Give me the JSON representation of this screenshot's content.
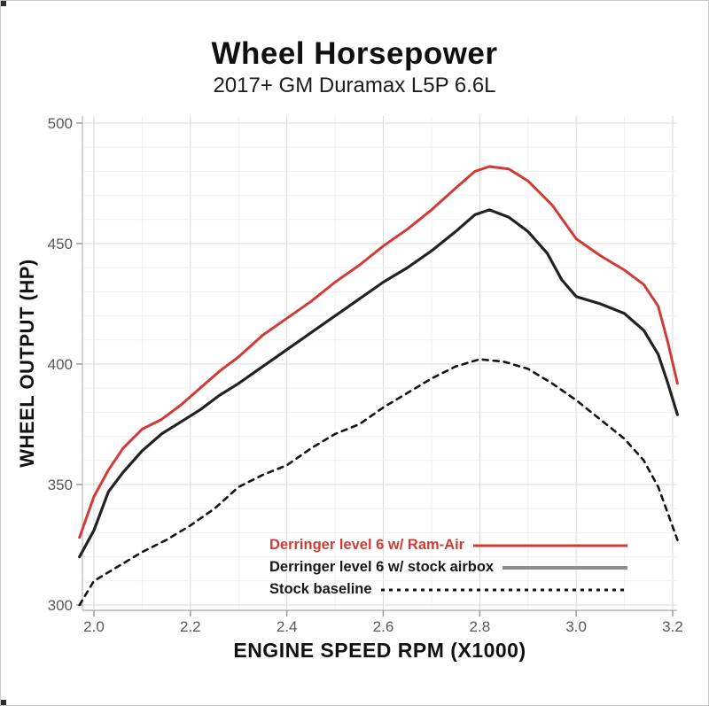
{
  "page": {
    "background": "#ffffff",
    "border_color": "#c9c9c9"
  },
  "chart_data": {
    "type": "line",
    "title": "Wheel Horsepower",
    "subtitle": "2017+ GM Duramax L5P 6.6L",
    "xlabel": "ENGINE SPEED RPM (X1000)",
    "ylabel": "WHEEL OUTPUT (HP)",
    "xlim": [
      1.97,
      3.21
    ],
    "ylim": [
      300,
      500
    ],
    "x_ticks": [
      2.0,
      2.2,
      2.4,
      2.6,
      2.8,
      3.0,
      3.2
    ],
    "x_tick_labels": [
      "2.0",
      "2.2",
      "2.4",
      "2.6",
      "2.8",
      "3.0",
      "3.2"
    ],
    "y_ticks": [
      300,
      350,
      400,
      450,
      500
    ],
    "y_tick_labels": [
      "300",
      "350",
      "400",
      "450",
      "500"
    ],
    "x_minor_step": 0.1,
    "y_minor_step": 10,
    "grid": true,
    "legend_position": "inside-bottom",
    "colors": {
      "grid_minor": "#f1f1f1",
      "grid_major": "#dadada",
      "axis_line": "#c9c9c9",
      "tick_mark": "#9a9a9a",
      "tick_label": "#595959",
      "legend_gray_line": "#8f8f8f"
    },
    "series": [
      {
        "name": "Derringer level 6 w/ Ram-Air",
        "color": "#d23b35",
        "style": "solid",
        "points": [
          [
            1.97,
            328
          ],
          [
            2.0,
            345
          ],
          [
            2.03,
            356
          ],
          [
            2.06,
            365
          ],
          [
            2.1,
            373
          ],
          [
            2.14,
            377
          ],
          [
            2.18,
            383
          ],
          [
            2.22,
            390
          ],
          [
            2.26,
            397
          ],
          [
            2.3,
            403
          ],
          [
            2.35,
            412
          ],
          [
            2.4,
            419
          ],
          [
            2.45,
            426
          ],
          [
            2.5,
            434
          ],
          [
            2.55,
            441
          ],
          [
            2.6,
            449
          ],
          [
            2.65,
            456
          ],
          [
            2.7,
            464
          ],
          [
            2.75,
            473
          ],
          [
            2.79,
            480
          ],
          [
            2.82,
            482
          ],
          [
            2.86,
            481
          ],
          [
            2.9,
            476
          ],
          [
            2.95,
            466
          ],
          [
            3.0,
            452
          ],
          [
            3.05,
            445
          ],
          [
            3.1,
            439
          ],
          [
            3.14,
            433
          ],
          [
            3.17,
            424
          ],
          [
            3.19,
            409
          ],
          [
            3.21,
            392
          ]
        ]
      },
      {
        "name": "Derringer level 6 w/ stock airbox",
        "color": "#222222",
        "style": "solid",
        "points": [
          [
            1.97,
            320
          ],
          [
            2.0,
            331
          ],
          [
            2.03,
            347
          ],
          [
            2.06,
            355
          ],
          [
            2.1,
            364
          ],
          [
            2.14,
            371
          ],
          [
            2.18,
            376
          ],
          [
            2.22,
            381
          ],
          [
            2.26,
            387
          ],
          [
            2.3,
            392
          ],
          [
            2.35,
            399
          ],
          [
            2.4,
            406
          ],
          [
            2.45,
            413
          ],
          [
            2.5,
            420
          ],
          [
            2.55,
            427
          ],
          [
            2.6,
            434
          ],
          [
            2.65,
            440
          ],
          [
            2.7,
            447
          ],
          [
            2.75,
            455
          ],
          [
            2.79,
            462
          ],
          [
            2.82,
            464
          ],
          [
            2.86,
            461
          ],
          [
            2.9,
            455
          ],
          [
            2.94,
            446
          ],
          [
            2.97,
            435
          ],
          [
            3.0,
            428
          ],
          [
            3.05,
            425
          ],
          [
            3.1,
            421
          ],
          [
            3.14,
            414
          ],
          [
            3.17,
            404
          ],
          [
            3.19,
            392
          ],
          [
            3.21,
            379
          ]
        ]
      },
      {
        "name": "Stock baseline",
        "color": "#151515",
        "style": "dashed",
        "points": [
          [
            1.97,
            300
          ],
          [
            2.0,
            310
          ],
          [
            2.05,
            316
          ],
          [
            2.1,
            322
          ],
          [
            2.15,
            327
          ],
          [
            2.2,
            333
          ],
          [
            2.25,
            340
          ],
          [
            2.3,
            349
          ],
          [
            2.35,
            354
          ],
          [
            2.4,
            358
          ],
          [
            2.45,
            365
          ],
          [
            2.5,
            371
          ],
          [
            2.55,
            375
          ],
          [
            2.6,
            382
          ],
          [
            2.65,
            388
          ],
          [
            2.7,
            394
          ],
          [
            2.75,
            399
          ],
          [
            2.8,
            402
          ],
          [
            2.85,
            401
          ],
          [
            2.9,
            398
          ],
          [
            2.95,
            392
          ],
          [
            3.0,
            385
          ],
          [
            3.05,
            377
          ],
          [
            3.1,
            369
          ],
          [
            3.14,
            360
          ],
          [
            3.17,
            349
          ],
          [
            3.19,
            338
          ],
          [
            3.21,
            327
          ]
        ]
      }
    ]
  }
}
